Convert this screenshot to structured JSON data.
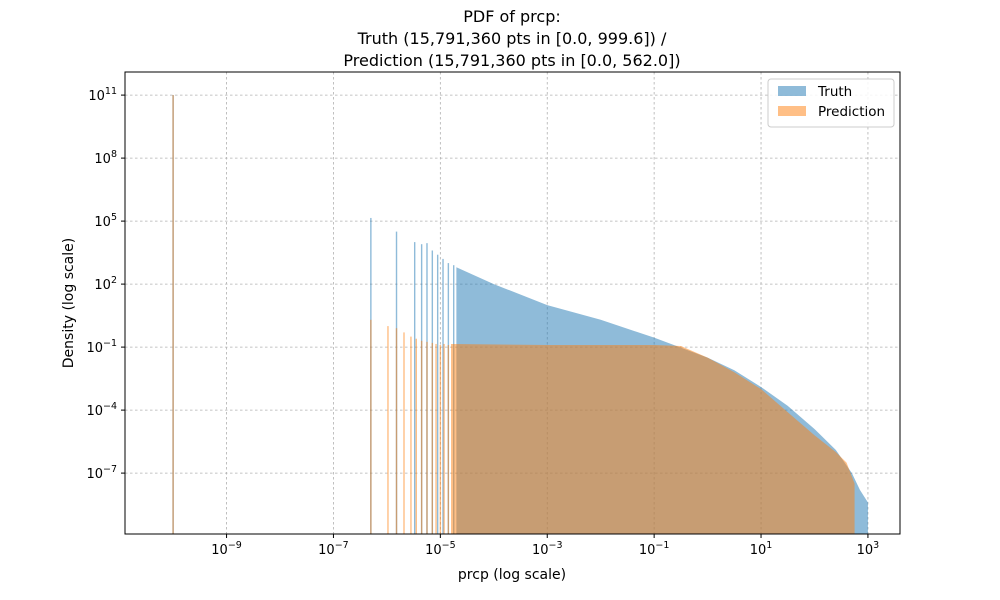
{
  "chart_data": {
    "type": "bar",
    "title_lines": [
      "PDF of prcp:",
      "Truth (15,791,360 pts in [0.0, 999.6]) /",
      "Prediction (15,791,360 pts in [0.0, 562.0])"
    ],
    "xlabel": "prcp (log scale)",
    "ylabel": "Density (log scale)",
    "xscale": "log",
    "yscale": "log",
    "xlim_log10": [
      -10.9,
      3.6
    ],
    "ylim_log10": [
      -9.9,
      12.1
    ],
    "x_ticks": [
      {
        "mantissa": "10",
        "exponent": "−9",
        "log10": -9
      },
      {
        "mantissa": "10",
        "exponent": "−7",
        "log10": -7
      },
      {
        "mantissa": "10",
        "exponent": "−5",
        "log10": -5
      },
      {
        "mantissa": "10",
        "exponent": "−3",
        "log10": -3
      },
      {
        "mantissa": "10",
        "exponent": "−1",
        "log10": -1
      },
      {
        "mantissa": "10",
        "exponent": "1",
        "log10": 1
      },
      {
        "mantissa": "10",
        "exponent": "3",
        "log10": 3
      }
    ],
    "y_ticks": [
      {
        "mantissa": "10",
        "exponent": "11",
        "log10": 11
      },
      {
        "mantissa": "10",
        "exponent": "8",
        "log10": 8
      },
      {
        "mantissa": "10",
        "exponent": "5",
        "log10": 5
      },
      {
        "mantissa": "10",
        "exponent": "2",
        "log10": 2
      },
      {
        "mantissa": "10",
        "exponent": "−1",
        "log10": -1
      },
      {
        "mantissa": "10",
        "exponent": "−4",
        "log10": -4
      },
      {
        "mantissa": "10",
        "exponent": "−7",
        "log10": -7
      }
    ],
    "grid": true,
    "legend_position": "top-right",
    "series": [
      {
        "name": "Truth",
        "color": "#1f77b4",
        "alpha": 0.5,
        "spikes": [
          {
            "log10_x": -10.0,
            "log10_y": 11.0
          },
          {
            "log10_x": -6.3,
            "log10_y": 5.15
          },
          {
            "log10_x": -5.82,
            "log10_y": 4.5
          },
          {
            "log10_x": -5.48,
            "log10_y": 4.0
          },
          {
            "log10_x": -5.35,
            "log10_y": 3.9
          },
          {
            "log10_x": -5.25,
            "log10_y": 3.95
          },
          {
            "log10_x": -5.15,
            "log10_y": 3.6
          },
          {
            "log10_x": -5.05,
            "log10_y": 3.4
          },
          {
            "log10_x": -4.95,
            "log10_y": 3.2
          },
          {
            "log10_x": -4.85,
            "log10_y": 3.0
          },
          {
            "log10_x": -4.75,
            "log10_y": 2.9
          }
        ],
        "envelope": [
          {
            "log10_x": -4.7,
            "log10_y": 2.8
          },
          {
            "log10_x": -4.0,
            "log10_y": 2.0
          },
          {
            "log10_x": -3.0,
            "log10_y": 1.0
          },
          {
            "log10_x": -2.0,
            "log10_y": 0.3
          },
          {
            "log10_x": -1.0,
            "log10_y": -0.55
          },
          {
            "log10_x": 0.0,
            "log10_y": -1.5
          },
          {
            "log10_x": 0.5,
            "log10_y": -2.1
          },
          {
            "log10_x": 1.0,
            "log10_y": -2.9
          },
          {
            "log10_x": 1.5,
            "log10_y": -3.8
          },
          {
            "log10_x": 2.0,
            "log10_y": -4.9
          },
          {
            "log10_x": 2.4,
            "log10_y": -5.9
          },
          {
            "log10_x": 2.7,
            "log10_y": -7.0
          },
          {
            "log10_x": 2.85,
            "log10_y": -7.8
          },
          {
            "log10_x": 3.0,
            "log10_y": -8.4
          }
        ]
      },
      {
        "name": "Prediction",
        "color": "#ff7f0e",
        "alpha": 0.5,
        "spikes": [
          {
            "log10_x": -10.0,
            "log10_y": 11.0
          },
          {
            "log10_x": -6.3,
            "log10_y": 0.3
          },
          {
            "log10_x": -5.98,
            "log10_y": 0.0
          },
          {
            "log10_x": -5.82,
            "log10_y": -0.1
          },
          {
            "log10_x": -5.68,
            "log10_y": -0.3
          },
          {
            "log10_x": -5.55,
            "log10_y": -0.5
          },
          {
            "log10_x": -5.45,
            "log10_y": -0.6
          },
          {
            "log10_x": -5.35,
            "log10_y": -0.7
          },
          {
            "log10_x": -5.25,
            "log10_y": -0.75
          },
          {
            "log10_x": -5.15,
            "log10_y": -0.8
          },
          {
            "log10_x": -5.08,
            "log10_y": -0.85
          },
          {
            "log10_x": -5.0,
            "log10_y": -0.9
          },
          {
            "log10_x": -4.93,
            "log10_y": -0.85
          },
          {
            "log10_x": -4.85,
            "log10_y": -0.9
          }
        ],
        "envelope": [
          {
            "log10_x": -4.8,
            "log10_y": -0.85
          },
          {
            "log10_x": -3.0,
            "log10_y": -0.9
          },
          {
            "log10_x": -2.0,
            "log10_y": -0.9
          },
          {
            "log10_x": -1.0,
            "log10_y": -0.9
          },
          {
            "log10_x": -0.5,
            "log10_y": -0.95
          },
          {
            "log10_x": 0.0,
            "log10_y": -1.5
          },
          {
            "log10_x": 0.5,
            "log10_y": -2.2
          },
          {
            "log10_x": 1.0,
            "log10_y": -3.0
          },
          {
            "log10_x": 1.5,
            "log10_y": -4.1
          },
          {
            "log10_x": 2.0,
            "log10_y": -5.2
          },
          {
            "log10_x": 2.4,
            "log10_y": -6.0
          },
          {
            "log10_x": 2.6,
            "log10_y": -6.5
          },
          {
            "log10_x": 2.75,
            "log10_y": -7.5
          }
        ]
      }
    ]
  }
}
